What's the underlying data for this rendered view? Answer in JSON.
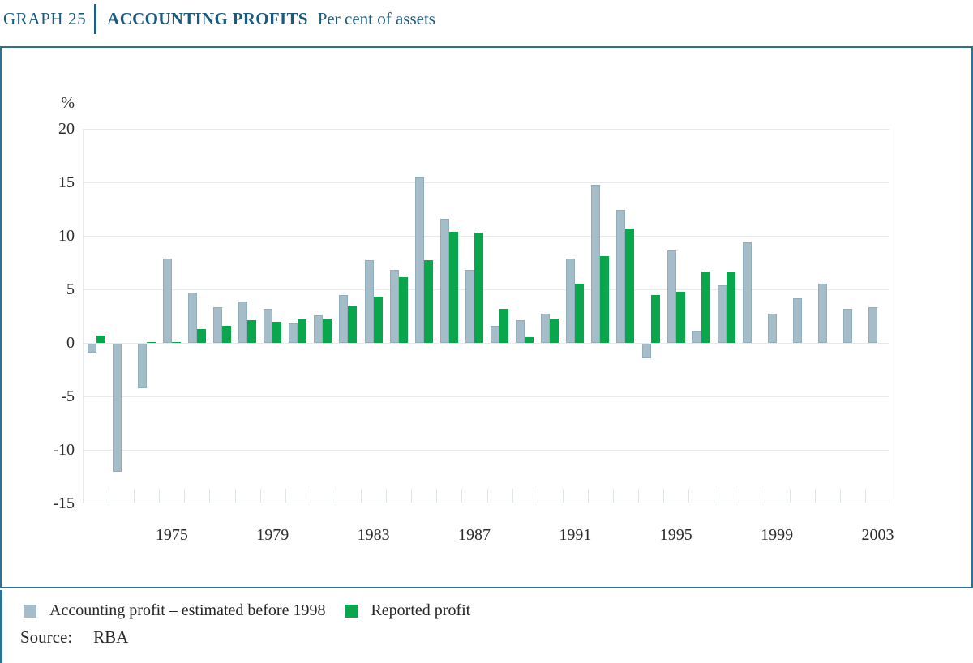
{
  "header": {
    "graph_label": "GRAPH 25",
    "title": "ACCOUNTING PROFITS",
    "subtitle": "Per cent of assets"
  },
  "legend": {
    "items": [
      {
        "label": "Accounting profit – estimated before 1998",
        "color": "#a4bdc9"
      },
      {
        "label": "Reported profit",
        "color": "#0aa64c"
      }
    ]
  },
  "source": {
    "label": "Source:",
    "value": "RBA"
  },
  "colors": {
    "accent_teal": "#2b7294",
    "header_text": "#1a5a7e",
    "accounting_bar": "#a4bdc9",
    "reported_bar": "#0aa64c",
    "gridline": "#e7eaea",
    "tick_text": "#2c2c2c"
  },
  "chart_data": {
    "type": "bar",
    "title": "ACCOUNTING PROFITS",
    "subtitle": "Per cent of assets",
    "unit_label": "%",
    "ylabel": "Per cent of assets",
    "ylim": [
      -15,
      20
    ],
    "ytick_step": 5,
    "yticks": [
      20,
      15,
      10,
      5,
      0,
      -5,
      -10,
      -15
    ],
    "grid": true,
    "legend_position": "bottom",
    "categories": [
      1972,
      1973,
      1974,
      1975,
      1976,
      1977,
      1978,
      1979,
      1980,
      1981,
      1982,
      1983,
      1984,
      1985,
      1986,
      1987,
      1988,
      1989,
      1990,
      1991,
      1992,
      1993,
      1994,
      1995,
      1996,
      1997,
      1998,
      1999,
      2000,
      2001,
      2002,
      2003
    ],
    "x_tick_years": [
      1975,
      1979,
      1983,
      1987,
      1991,
      1995,
      1999,
      2003
    ],
    "series": [
      {
        "name": "Accounting profit – estimated before 1998",
        "color": "#a4bdc9",
        "values": [
          -0.8,
          -12.0,
          -4.2,
          7.9,
          4.7,
          3.3,
          3.9,
          3.2,
          1.8,
          2.6,
          4.5,
          7.7,
          6.8,
          15.5,
          11.6,
          6.8,
          1.6,
          2.1,
          2.7,
          7.9,
          14.8,
          12.4,
          -1.4,
          8.6,
          1.1,
          5.4,
          9.4,
          2.7,
          4.2,
          5.5,
          3.2,
          3.3
        ]
      },
      {
        "name": "Reported profit",
        "color": "#0aa64c",
        "values": [
          0.7,
          0,
          0.1,
          0.1,
          1.3,
          1.6,
          2.1,
          2.0,
          2.2,
          2.3,
          3.4,
          4.3,
          6.1,
          7.7,
          10.4,
          10.3,
          3.2,
          0.5,
          2.3,
          5.5,
          8.1,
          10.7,
          4.5,
          4.8,
          6.7,
          6.6,
          null,
          null,
          null,
          null,
          null,
          null
        ]
      }
    ],
    "source": "RBA"
  }
}
